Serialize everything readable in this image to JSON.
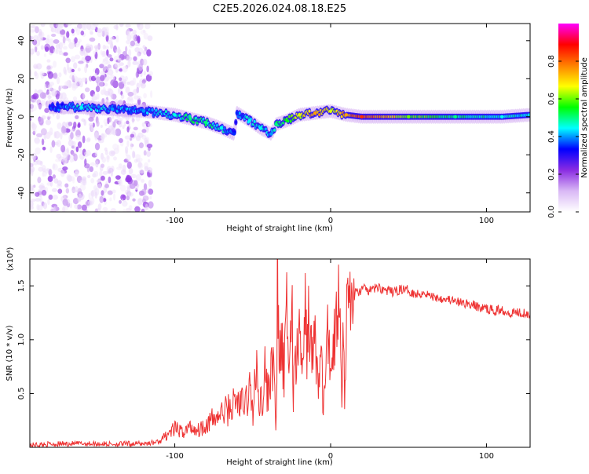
{
  "title": "C2E5.2026.024.08.18.E25",
  "chart_data": [
    {
      "type": "heatmap",
      "xlabel": "Height of straight line (km)",
      "ylabel": "Frequency (Hz)",
      "xlim": [
        -193,
        128
      ],
      "ylim": [
        -50,
        49
      ],
      "x_ticks": [
        -100,
        0,
        100
      ],
      "x_tick_labels": [
        "-100",
        "0",
        "100"
      ],
      "y_ticks": [
        -40,
        -20,
        0,
        20,
        40
      ],
      "y_tick_labels": [
        "-40",
        "-20",
        "0",
        "20",
        "40"
      ],
      "colorbar": {
        "label": "Normalized spectral amplitude",
        "range": [
          0,
          1
        ],
        "ticks": [
          0.0,
          0.2,
          0.4,
          0.6,
          0.8
        ],
        "tick_labels": [
          "0.0",
          "0.2",
          "0.4",
          "0.6",
          "0.8"
        ],
        "colors": [
          "#ffffff",
          "#d9b8f5",
          "#8a2be2",
          "#0000ff",
          "#00ffff",
          "#00ff00",
          "#ffff00",
          "#ff8000",
          "#ff0000",
          "#ff00ff"
        ]
      },
      "scatter_region": {
        "x_range": [
          -193,
          -115
        ],
        "freq_range": [
          -50,
          49
        ],
        "level": 0.05
      },
      "trace": [
        {
          "x": -175,
          "y": 5,
          "a": 0.35
        },
        {
          "x": -160,
          "y": 5,
          "a": 0.45
        },
        {
          "x": -140,
          "y": 4,
          "a": 0.4
        },
        {
          "x": -120,
          "y": 3,
          "a": 0.4
        },
        {
          "x": -100,
          "y": 1,
          "a": 0.45
        },
        {
          "x": -90,
          "y": -1,
          "a": 0.5
        },
        {
          "x": -80,
          "y": -3,
          "a": 0.5
        },
        {
          "x": -70,
          "y": -6,
          "a": 0.45
        },
        {
          "x": -62,
          "y": -9,
          "a": 0.35
        },
        {
          "x": -60,
          "y": 2,
          "a": 0.35
        },
        {
          "x": -52,
          "y": -2,
          "a": 0.45
        },
        {
          "x": -45,
          "y": -6,
          "a": 0.45
        },
        {
          "x": -38,
          "y": -9,
          "a": 0.4
        },
        {
          "x": -35,
          "y": -4,
          "a": 0.5
        },
        {
          "x": -28,
          "y": -2,
          "a": 0.55
        },
        {
          "x": -20,
          "y": 1,
          "a": 0.65
        },
        {
          "x": -10,
          "y": 2,
          "a": 0.75
        },
        {
          "x": 0,
          "y": 3,
          "a": 0.65
        },
        {
          "x": 10,
          "y": 1,
          "a": 0.75
        },
        {
          "x": 20,
          "y": 0,
          "a": 0.85
        },
        {
          "x": 50,
          "y": 0,
          "a": 0.6
        },
        {
          "x": 80,
          "y": 0,
          "a": 0.5
        },
        {
          "x": 110,
          "y": 0,
          "a": 0.45
        },
        {
          "x": 128,
          "y": 1,
          "a": 0.45
        }
      ]
    },
    {
      "type": "line",
      "xlabel": "Height of straight line (km)",
      "ylabel": "SNR (10 * v/v)",
      "y_multiplier": "(x10⁴)",
      "xlim": [
        -193,
        128
      ],
      "ylim": [
        0,
        17500
      ],
      "x_ticks": [
        -100,
        0,
        100
      ],
      "x_tick_labels": [
        "-100",
        "0",
        "100"
      ],
      "y_ticks": [
        5000,
        10000,
        15000
      ],
      "y_tick_labels": [
        "0.5",
        "1.0",
        "1.5"
      ],
      "series": [
        {
          "name": "SNR",
          "color": "#ee3333",
          "x": [
            -193,
            -180,
            -160,
            -140,
            -120,
            -110,
            -105,
            -100,
            -95,
            -90,
            -85,
            -80,
            -75,
            -70,
            -65,
            -60,
            -55,
            -52,
            -50,
            -48,
            -45,
            -42,
            -40,
            -38,
            -36,
            -35,
            -34,
            -33,
            -32,
            -30,
            -28,
            -26,
            -25,
            -24,
            -23,
            -22,
            -20,
            -18,
            -16,
            -15,
            -14,
            -12,
            -10,
            -8,
            -6,
            -5,
            -4,
            -2,
            0,
            2,
            4,
            6,
            7,
            8,
            9,
            10,
            11,
            12,
            14,
            16,
            18,
            20,
            25,
            30,
            35,
            40,
            45,
            50,
            55,
            60,
            65,
            70,
            75,
            80,
            85,
            90,
            95,
            100,
            105,
            110,
            115,
            120,
            125,
            128
          ],
          "y": [
            200,
            300,
            350,
            300,
            350,
            500,
            1200,
            1700,
            1400,
            1900,
            1600,
            2200,
            2600,
            3100,
            3600,
            4300,
            3800,
            5600,
            3200,
            6900,
            4200,
            7000,
            4400,
            9200,
            5100,
            1400,
            16800,
            4800,
            10400,
            6300,
            12700,
            7100,
            16600,
            3200,
            11100,
            7300,
            10900,
            6500,
            13000,
            8900,
            12500,
            7800,
            10600,
            5300,
            9500,
            3800,
            4900,
            10100,
            7800,
            9900,
            12000,
            17500,
            3200,
            13500,
            3300,
            11200,
            12600,
            14200,
            13400,
            14500,
            14300,
            14800,
            14500,
            14900,
            14600,
            14400,
            14700,
            14600,
            14200,
            14400,
            14000,
            13900,
            13800,
            13500,
            13400,
            13300,
            13000,
            12900,
            12700,
            12800,
            12500,
            12600,
            12500,
            12400
          ]
        }
      ]
    }
  ]
}
